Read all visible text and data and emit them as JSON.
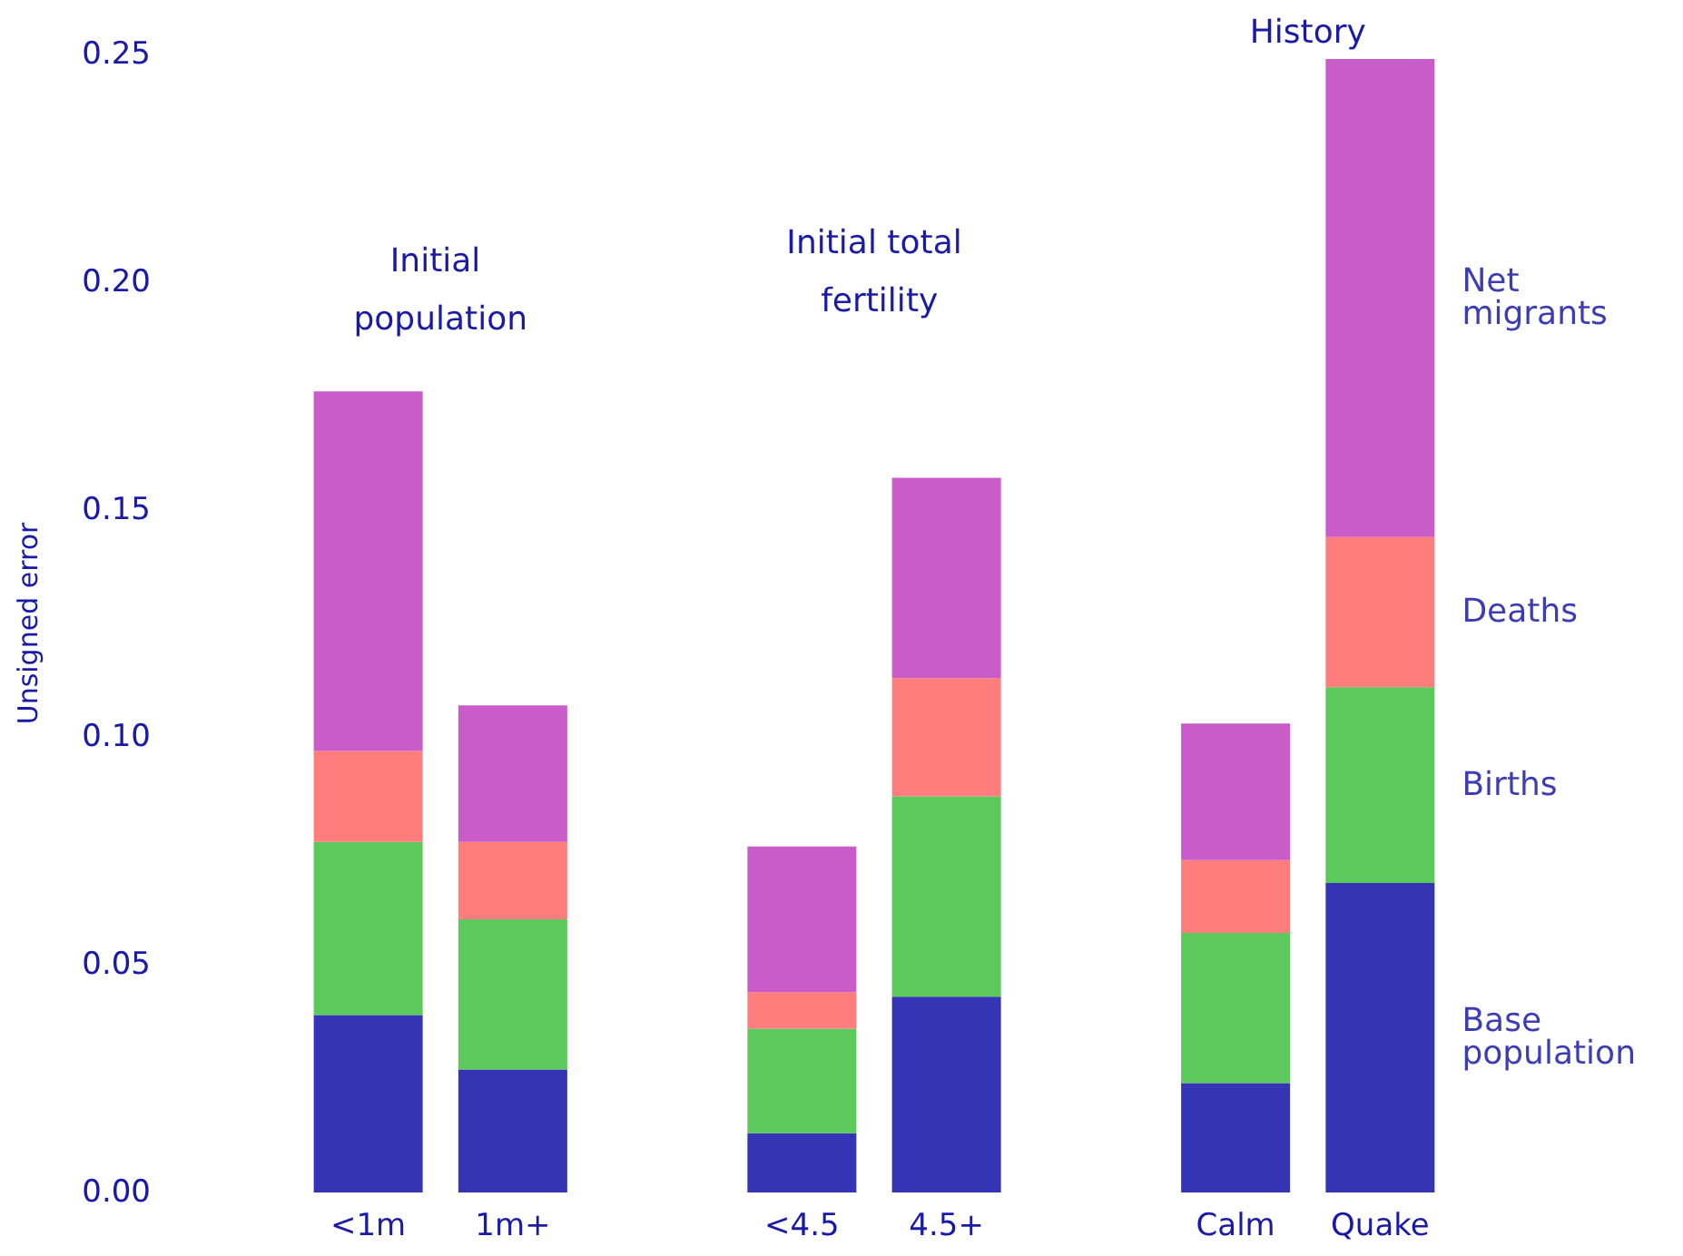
{
  "chart_data": {
    "type": "bar",
    "stacked": true,
    "ylabel": "Unsigned error",
    "categories": [
      "<1m",
      "1m+",
      null,
      "<4.5",
      "4.5+",
      null,
      "Calm",
      "Quake"
    ],
    "series": [
      {
        "name": "Base population",
        "color": "#1010a8",
        "values": [
          0.039,
          0.027,
          null,
          0.013,
          0.043,
          null,
          0.024,
          0.068
        ]
      },
      {
        "name": "Births",
        "color": "#40c040",
        "values": [
          0.038,
          0.033,
          null,
          0.023,
          0.044,
          null,
          0.033,
          0.043
        ]
      },
      {
        "name": "Deaths",
        "color": "#ff6666",
        "values": [
          0.02,
          0.017,
          null,
          0.008,
          0.026,
          null,
          0.016,
          0.033
        ]
      },
      {
        "name": "Net migrants",
        "color": "#c040c0",
        "values": [
          0.079,
          0.03,
          null,
          0.032,
          0.044,
          null,
          0.03,
          0.105
        ]
      }
    ],
    "ylim": [
      0,
      0.25
    ],
    "yticks": [
      {
        "value": 0,
        "label": "0.00"
      },
      {
        "value": 0.05,
        "label": "0.05"
      },
      {
        "value": 0.1,
        "label": "0.10"
      },
      {
        "value": 0.15,
        "label": "0.15"
      },
      {
        "value": 0.2,
        "label": "0.20"
      },
      {
        "value": 0.25,
        "label": "0.25"
      }
    ],
    "annotations": [
      "Initial population",
      "Initial total fertility",
      "History"
    ],
    "grid": false,
    "legend": false
  }
}
